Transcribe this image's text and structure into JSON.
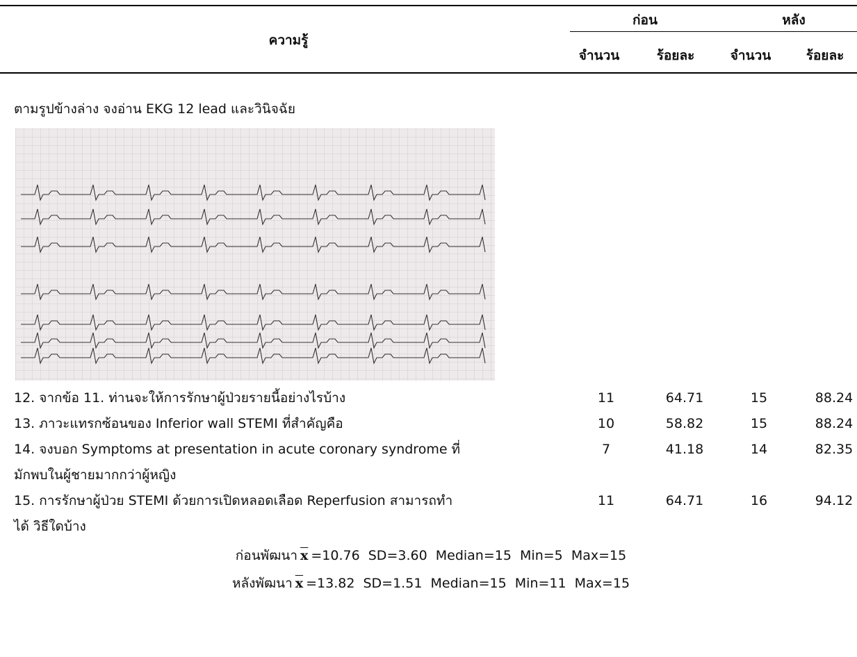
{
  "header": {
    "topic": "ความรู้",
    "before": "ก่อน",
    "after": "หลัง",
    "columns": [
      "จำนวน",
      "ร้อยละ",
      "จำนวน",
      "ร้อยละ"
    ]
  },
  "intro": "ตามรูปข้างล่าง จงอ่าน EKG 12 lead และวินิจฉัย",
  "rows": [
    {
      "lines": [
        "12. จากข้อ 11. ท่านจะให้การรักษาผู้ป่วยรายนี้อย่างไรบ้าง"
      ],
      "values": [
        11,
        64.71,
        15,
        88.24
      ]
    },
    {
      "lines": [
        "13. ภาวะแทรกซ้อนของ Inferior wall STEMI ที่สำคัญคือ"
      ],
      "values": [
        10,
        58.82,
        15,
        88.24
      ]
    },
    {
      "lines": [
        "14. จงบอก Symptoms at presentation in acute coronary syndrome ที่",
        "มักพบในผู้ชายมากกว่าผู้หญิง"
      ],
      "values": [
        7,
        41.18,
        14,
        82.35
      ]
    },
    {
      "lines": [
        "15. การรักษาผู้ป่วย STEMI ด้วยการเปิดหลอดเลือด Reperfusion สามารถทำ",
        "ได้ วิธีใดบ้าง"
      ],
      "values": [
        11,
        64.71,
        16,
        94.12
      ]
    }
  ],
  "summary": [
    {
      "label": "ก่อนพัฒนา",
      "symbol": "x",
      "stats": "=10.76  SD=3.60  Median=15  Min=5  Max=15"
    },
    {
      "label": "หลังพัฒนา",
      "symbol": "x",
      "stats": "=13.82  SD=1.51  Median=15  Min=11  Max=15"
    }
  ]
}
